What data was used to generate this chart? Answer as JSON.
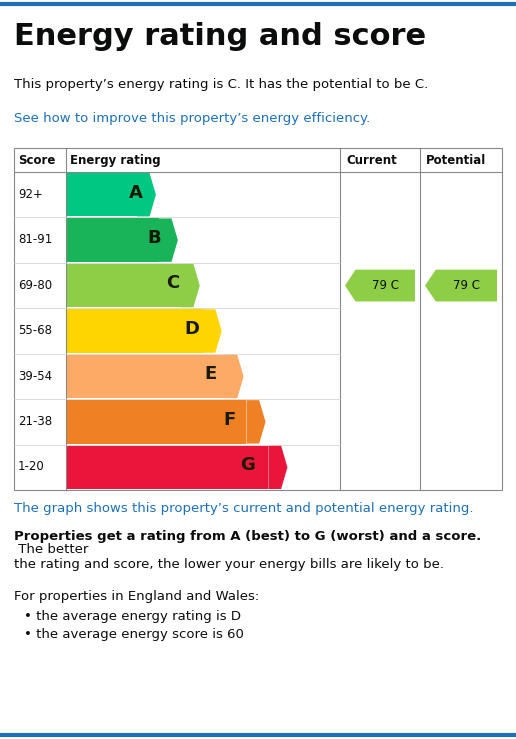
{
  "title": "Energy rating and score",
  "subtitle": "This property’s energy rating is C. It has the potential to be C.",
  "link_text": "See how to improve this property’s energy efficiency.",
  "table_headers": [
    "Score",
    "Energy rating",
    "Current",
    "Potential"
  ],
  "ratings": [
    {
      "score": "92+",
      "letter": "A",
      "color": "#00c781",
      "bar_width": 0.3
    },
    {
      "score": "81-91",
      "letter": "B",
      "color": "#19b459",
      "bar_width": 0.38
    },
    {
      "score": "69-80",
      "letter": "C",
      "color": "#8dce46",
      "bar_width": 0.46
    },
    {
      "score": "55-68",
      "letter": "D",
      "color": "#ffd500",
      "bar_width": 0.54
    },
    {
      "score": "39-54",
      "letter": "E",
      "color": "#fcaa65",
      "bar_width": 0.62
    },
    {
      "score": "21-38",
      "letter": "F",
      "color": "#ef8023",
      "bar_width": 0.7
    },
    {
      "score": "1-20",
      "letter": "G",
      "color": "#e9153b",
      "bar_width": 0.78
    }
  ],
  "current_rating": {
    "value": "79 C",
    "row": 2,
    "color": "#8dce46"
  },
  "potential_rating": {
    "value": "79 C",
    "row": 2,
    "color": "#8dce46"
  },
  "footer_text1": "The graph shows this property’s current and potential energy rating.",
  "footer_bold": "Properties get a rating from A (best) to G (worst) and a score.",
  "footer_text2": " The better\nthe rating and score, the lower your energy bills are likely to be.",
  "footer_text3": "For properties in England and Wales:",
  "bullet1": "the average energy rating is D",
  "bullet2": "the average energy score is 60",
  "top_border_color": "#1d70b8",
  "bottom_border_color": "#1d70b8",
  "link_color": "#1d70b8",
  "footer_color": "#0b0c0c",
  "bg_color": "#ffffff"
}
